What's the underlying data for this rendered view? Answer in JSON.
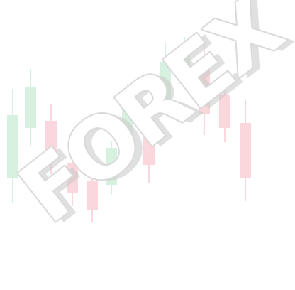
{
  "watermark": {
    "text": "FOREX",
    "fill_color": "#ffffff",
    "outline_color": "#d9d9d9",
    "shadow_color": "#c8c8c8"
  },
  "candles": {
    "up_color": "#d6f1df",
    "down_color": "#f9d7dc"
  }
}
